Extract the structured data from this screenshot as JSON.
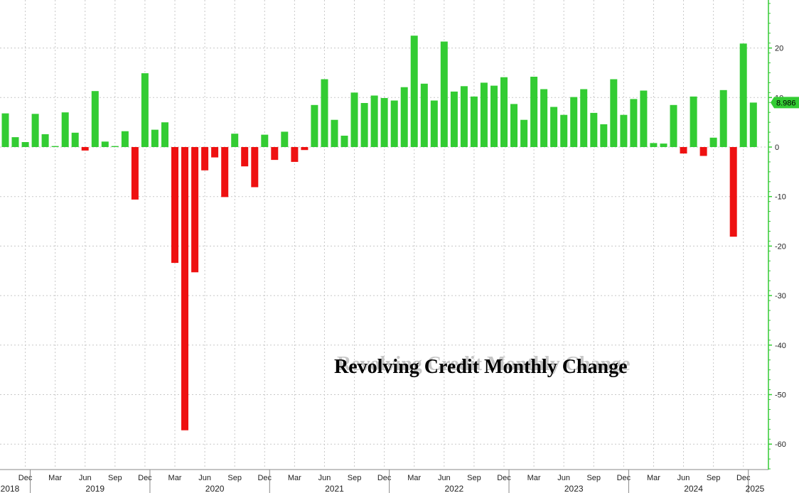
{
  "chart_data": {
    "type": "bar",
    "title": "Revolving Credit Monthly Change",
    "colors": {
      "positive": "#33cc33",
      "negative": "#ee1111",
      "axis": "#33cc33",
      "callout": "#33cc33"
    },
    "ylim": [
      -65,
      29
    ],
    "yticks": [
      20,
      10,
      0,
      -10,
      -20,
      -30,
      -40,
      -50,
      -60
    ],
    "grid": true,
    "last_value_label": "8.986",
    "x_start": "2018-10",
    "values": [
      6.8,
      2.0,
      1.0,
      6.7,
      2.6,
      0.2,
      7.0,
      2.9,
      -0.7,
      11.3,
      1.1,
      0.2,
      3.2,
      -10.6,
      14.9,
      3.5,
      5.0,
      -23.4,
      -57.2,
      -25.3,
      -4.7,
      -2.1,
      -10.1,
      2.7,
      -3.9,
      -8.1,
      2.5,
      -2.6,
      3.1,
      -3.0,
      -0.6,
      8.5,
      13.7,
      5.5,
      2.3,
      11.0,
      8.9,
      10.4,
      9.9,
      9.4,
      12.1,
      22.5,
      12.8,
      9.4,
      21.3,
      11.2,
      12.3,
      10.2,
      13.0,
      12.4,
      14.1,
      8.7,
      5.5,
      14.2,
      11.7,
      8.1,
      6.5,
      10.1,
      11.7,
      6.9,
      4.6,
      13.7,
      6.5,
      9.7,
      11.4,
      0.8,
      0.7,
      8.5,
      -1.3,
      10.2,
      -1.8,
      1.9,
      11.5,
      -18.1,
      20.9,
      8.986
    ],
    "month_ticks": [
      "Dec",
      "Mar",
      "Jun",
      "Sep",
      "Dec",
      "Mar",
      "Jun",
      "Sep",
      "Dec",
      "Mar",
      "Jun",
      "Sep",
      "Dec",
      "Mar",
      "Jun",
      "Sep",
      "Dec",
      "Mar",
      "Jun",
      "Sep",
      "Dec",
      "Mar",
      "Jun",
      "Sep",
      "Dec"
    ],
    "years": [
      "2018",
      "2019",
      "2020",
      "2021",
      "2022",
      "2023",
      "2024",
      "2025"
    ]
  }
}
